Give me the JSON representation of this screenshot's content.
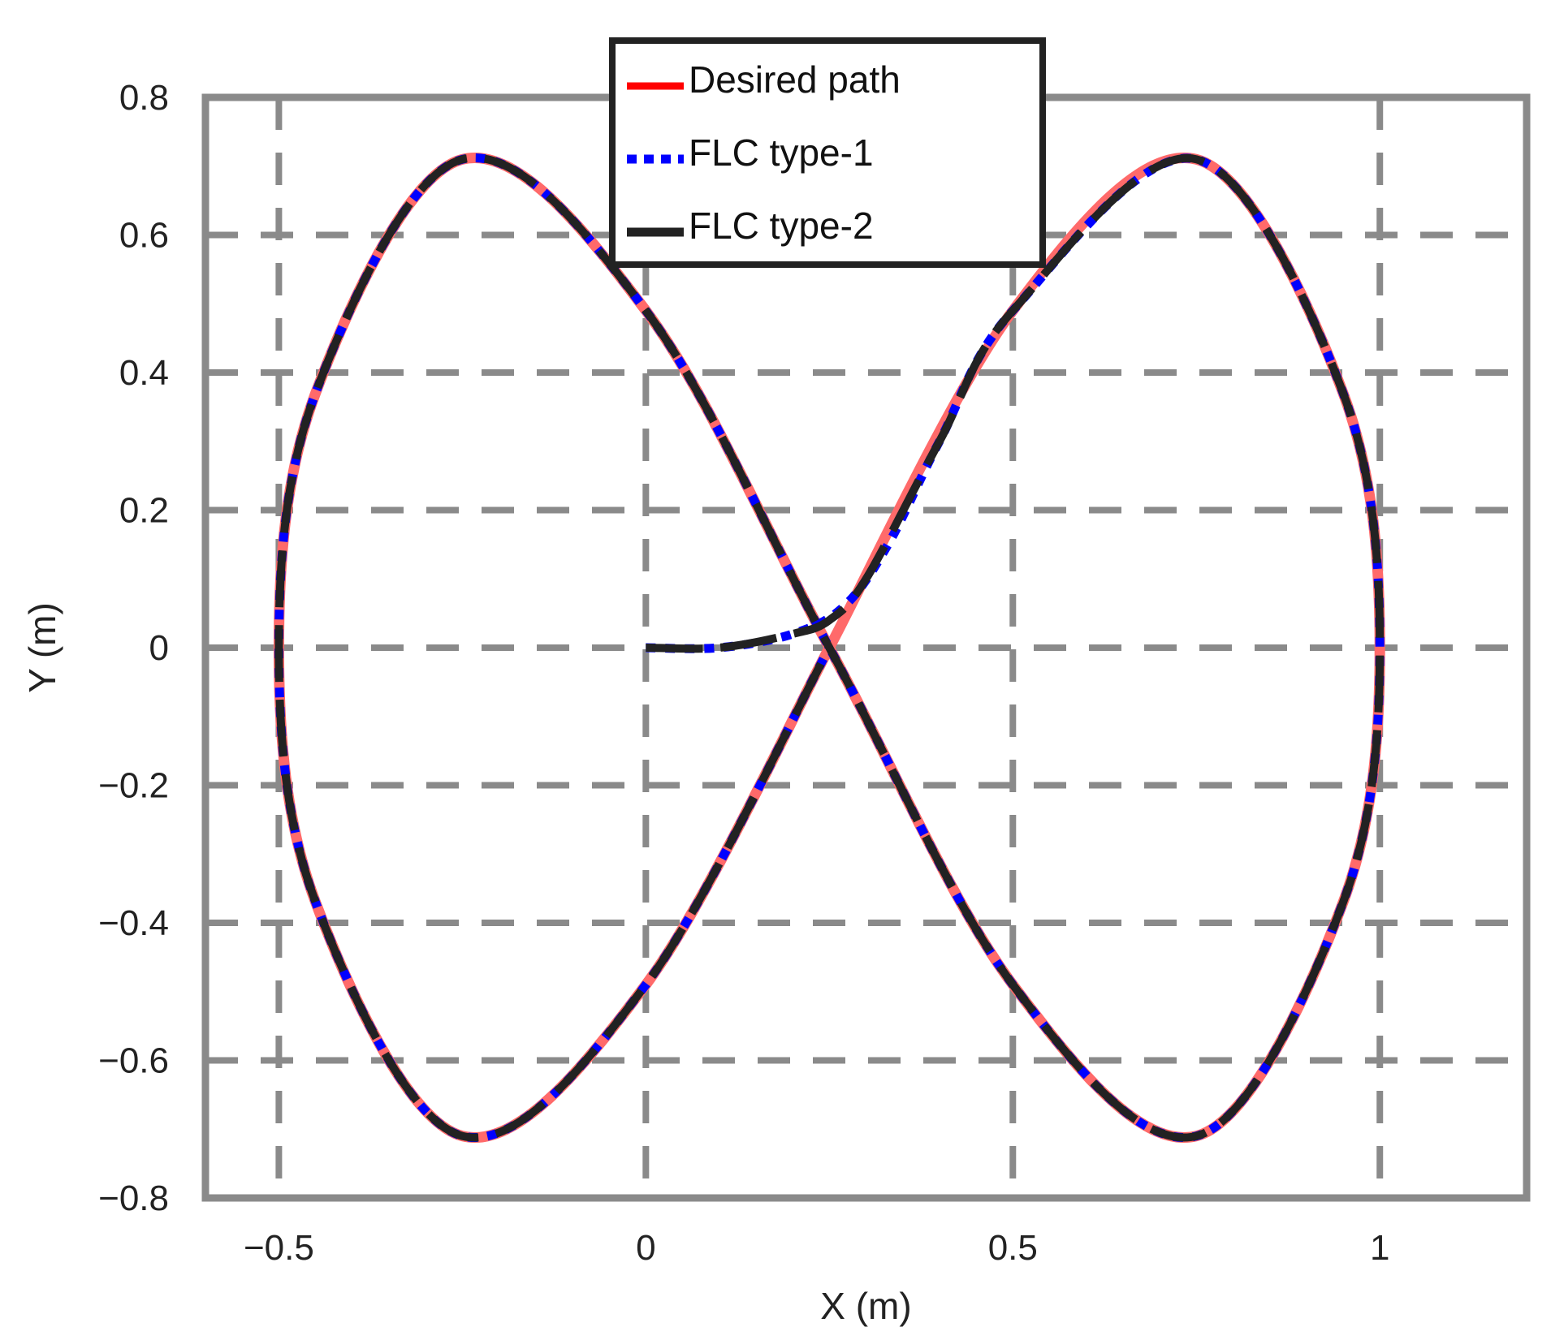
{
  "chart_data": {
    "type": "line",
    "title": "",
    "xlabel": "X (m)",
    "ylabel": "Y (m)",
    "xlim": [
      -0.6,
      1.2
    ],
    "ylim": [
      -0.8,
      0.8
    ],
    "x_ticks": [
      -0.5,
      0,
      0.5,
      1
    ],
    "x_tick_labels": [
      "−0.5",
      "0",
      "0.5",
      "1"
    ],
    "y_ticks": [
      0.8,
      0.6,
      0.4,
      0.2,
      0,
      -0.2,
      -0.4,
      -0.6,
      -0.8
    ],
    "y_tick_labels": [
      "0.8",
      "0.6",
      "0.4",
      "0.2",
      "0",
      "−0.2",
      "−0.4",
      "−0.6",
      "−0.8"
    ],
    "grid": true,
    "legend": {
      "position": "top-center",
      "entries": [
        {
          "label": "Desired path",
          "color": "#ff0000",
          "style": "solid"
        },
        {
          "label": "FLC type-1",
          "color": "#0000ff",
          "style": "dotted"
        },
        {
          "label": "FLC type-2",
          "color": "#222222",
          "style": "solid"
        }
      ]
    },
    "series": [
      {
        "name": "Desired path",
        "color": "#ff6a6a",
        "x": [
          0.25,
          0.5,
          0.75,
          0.95,
          1.0,
          0.95,
          0.75,
          0.5,
          0.25,
          0.0,
          -0.25,
          -0.45,
          -0.5,
          -0.45,
          -0.25,
          0.0,
          0.25
        ],
        "y": [
          0.0,
          0.49,
          0.71,
          0.37,
          0.0,
          -0.37,
          -0.71,
          -0.49,
          0.0,
          0.49,
          0.71,
          0.37,
          0.0,
          -0.37,
          -0.71,
          -0.49,
          0.0
        ]
      },
      {
        "name": "FLC type-1",
        "color": "#0000ff",
        "x": [
          0.0,
          0.1,
          0.2,
          0.27,
          0.33,
          0.4,
          0.5,
          0.75,
          0.95,
          1.0,
          0.95,
          0.75,
          0.5,
          0.25,
          0.0,
          -0.25,
          -0.45,
          -0.5,
          -0.45,
          -0.25,
          0.0,
          0.25
        ],
        "y": [
          0.0,
          0.0,
          0.02,
          0.06,
          0.15,
          0.3,
          0.49,
          0.71,
          0.37,
          0.0,
          -0.37,
          -0.71,
          -0.49,
          0.0,
          0.49,
          0.71,
          0.37,
          0.0,
          -0.37,
          -0.71,
          -0.49,
          0.0
        ]
      },
      {
        "name": "FLC type-2",
        "color": "#222222",
        "x": [
          0.0,
          0.1,
          0.2,
          0.25,
          0.3,
          0.4,
          0.5,
          0.75,
          0.95,
          1.0,
          0.95,
          0.75,
          0.5,
          0.25,
          0.0,
          -0.25,
          -0.45,
          -0.5,
          -0.45,
          -0.25,
          0.0,
          0.25
        ],
        "y": [
          0.0,
          0.0,
          0.02,
          0.04,
          0.1,
          0.3,
          0.49,
          0.71,
          0.37,
          0.0,
          -0.37,
          -0.71,
          -0.49,
          0.0,
          0.49,
          0.71,
          0.37,
          0.0,
          -0.37,
          -0.71,
          -0.49,
          0.0
        ]
      }
    ]
  }
}
